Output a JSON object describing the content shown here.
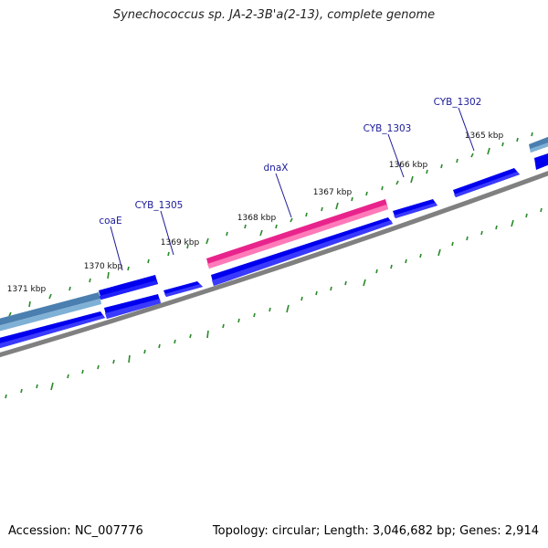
{
  "title": "Synechococcus sp. JA-2-3B'a(2-13), complete genome",
  "footer": {
    "accession": "Accession: NC_007776",
    "topology": "Topology: circular; Length: 3,046,682 bp; Genes: 2,914"
  },
  "colors": {
    "forward_gene": "#0000ee",
    "highlight_gene": "#e8248c",
    "other_gene": "#4a7faf",
    "backbone": "#808080",
    "ticks": "#2a8a2a",
    "gene_label": "#1a1a99"
  },
  "gene_labels": [
    "coaE",
    "CYB_1305",
    "dnaX",
    "CYB_1303",
    "CYB_1302"
  ],
  "kbp_labels": [
    "1371 kbp",
    "1370 kbp",
    "1369 kbp",
    "1368 kbp",
    "1367 kbp",
    "1366 kbp",
    "1365 kbp"
  ]
}
